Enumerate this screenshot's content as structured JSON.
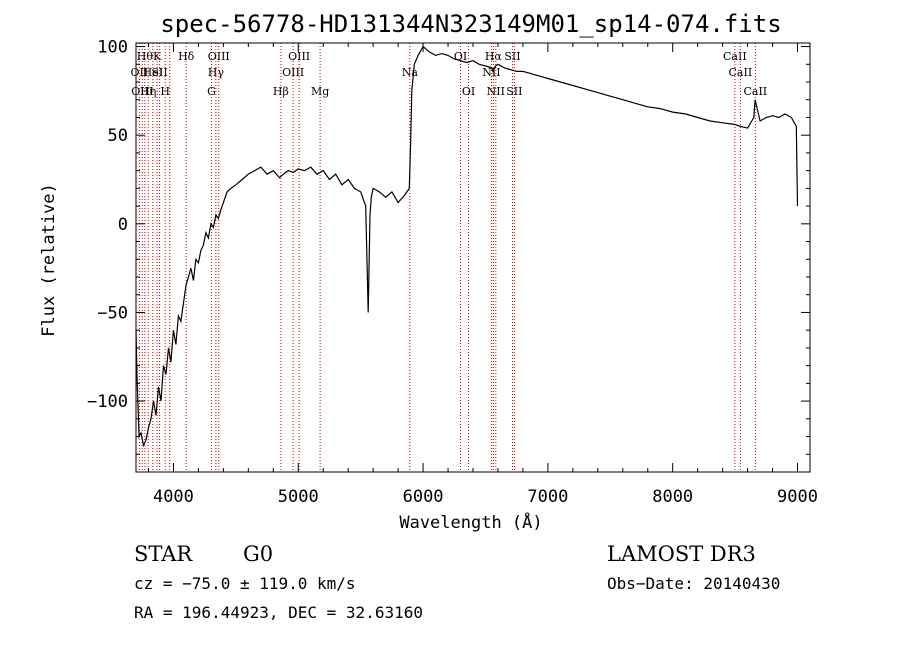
{
  "chart_data": {
    "type": "line",
    "title": "spec-56778-HD131344N323149M01_sp14-074.fits",
    "xlabel": "Wavelength (Å)",
    "ylabel": "Flux (relative)",
    "xlim": [
      3700,
      9100
    ],
    "ylim": [
      -140,
      102
    ],
    "xticks": [
      4000,
      5000,
      6000,
      7000,
      8000,
      9000
    ],
    "yticks": [
      -100,
      -50,
      0,
      50,
      100
    ],
    "grid": false,
    "line_color": "#000000",
    "marker_color": "#cc0000",
    "series": [
      {
        "x": [
          3700,
          3710,
          3725,
          3740,
          3760,
          3780,
          3800,
          3820,
          3840,
          3860,
          3880,
          3900,
          3920,
          3940,
          3960,
          3980,
          4000,
          4020,
          4040,
          4060,
          4080,
          4100,
          4120,
          4140,
          4160,
          4180,
          4200,
          4220,
          4240,
          4260,
          4280,
          4300,
          4320,
          4340,
          4360,
          4380,
          4400,
          4430,
          4460,
          4500,
          4550,
          4600,
          4650,
          4700,
          4750,
          4800,
          4850,
          4880,
          4920,
          4960,
          5000,
          5050,
          5100,
          5150,
          5200,
          5250,
          5300,
          5350,
          5400,
          5450,
          5500,
          5540,
          5560,
          5575,
          5585,
          5600,
          5650,
          5700,
          5750,
          5800,
          5850,
          5890,
          5900,
          5910,
          5930,
          5960,
          6000,
          6050,
          6100,
          6150,
          6200,
          6250,
          6300,
          6350,
          6400,
          6450,
          6500,
          6550,
          6560,
          6580,
          6600,
          6650,
          6700,
          6750,
          6800,
          6850,
          6900,
          6950,
          7000,
          7100,
          7200,
          7300,
          7400,
          7500,
          7600,
          7700,
          7800,
          7900,
          8000,
          8100,
          8200,
          8300,
          8400,
          8500,
          8540,
          8600,
          8650,
          8660,
          8700,
          8750,
          8800,
          8850,
          8900,
          8950,
          8990,
          9000
        ],
        "y": [
          -60,
          -90,
          -120,
          -118,
          -125,
          -122,
          -115,
          -110,
          -100,
          -108,
          -92,
          -100,
          -80,
          -85,
          -70,
          -78,
          -60,
          -68,
          -52,
          -55,
          -45,
          -35,
          -30,
          -25,
          -32,
          -20,
          -22,
          -15,
          -12,
          -5,
          -8,
          0,
          -2,
          5,
          3,
          8,
          12,
          18,
          20,
          22,
          25,
          28,
          30,
          32,
          28,
          30,
          26,
          28,
          30,
          29,
          31,
          30,
          32,
          28,
          30,
          25,
          28,
          22,
          25,
          20,
          18,
          10,
          -50,
          5,
          15,
          20,
          18,
          15,
          18,
          12,
          16,
          20,
          45,
          75,
          90,
          95,
          100,
          97,
          95,
          96,
          95,
          93,
          92,
          91,
          92,
          90,
          89,
          88,
          86,
          89,
          90,
          88,
          87,
          86,
          86,
          85,
          84,
          83,
          82,
          80,
          78,
          76,
          74,
          72,
          70,
          68,
          66,
          65,
          63,
          62,
          60,
          58,
          57,
          56,
          55,
          54,
          60,
          70,
          58,
          60,
          61,
          60,
          62,
          60,
          55,
          10
        ]
      }
    ],
    "line_markers": [
      {
        "wave": 3727,
        "label": "OII",
        "row": 2
      },
      {
        "wave": 3750,
        "label": "OIII",
        "row": 3
      },
      {
        "wave": 3771,
        "label": "Hθ",
        "row": 1
      },
      {
        "wave": 3798,
        "label": "Hη",
        "row": 3
      },
      {
        "wave": 3835,
        "label": "HeI",
        "row": 2
      },
      {
        "wave": 3869,
        "label": "K",
        "row": 1
      },
      {
        "wave": 3889,
        "label": "SII",
        "row": 2
      },
      {
        "wave": 3934,
        "label": "H",
        "row": 3
      },
      {
        "wave": 3970,
        "label": "",
        "row": 0
      },
      {
        "wave": 4102,
        "label": "Hδ",
        "row": 1
      },
      {
        "wave": 4305,
        "label": "G",
        "row": 3
      },
      {
        "wave": 4340,
        "label": "Hγ",
        "row": 2
      },
      {
        "wave": 4363,
        "label": "OIII",
        "row": 1
      },
      {
        "wave": 4861,
        "label": "Hβ",
        "row": 3
      },
      {
        "wave": 4959,
        "label": "OIII",
        "row": 2
      },
      {
        "wave": 5007,
        "label": "OIII",
        "row": 1
      },
      {
        "wave": 5175,
        "label": "Mg",
        "row": 3
      },
      {
        "wave": 5894,
        "label": "Na",
        "row": 2
      },
      {
        "wave": 6300,
        "label": "OI",
        "row": 1
      },
      {
        "wave": 6364,
        "label": "OI",
        "row": 3
      },
      {
        "wave": 6548,
        "label": "NII",
        "row": 2
      },
      {
        "wave": 6563,
        "label": "Hα",
        "row": 1
      },
      {
        "wave": 6583,
        "label": "NII",
        "row": 3
      },
      {
        "wave": 6716,
        "label": "SII",
        "row": 1
      },
      {
        "wave": 6731,
        "label": "SII",
        "row": 3
      },
      {
        "wave": 8498,
        "label": "CaII",
        "row": 1
      },
      {
        "wave": 8542,
        "label": "CaII",
        "row": 2
      },
      {
        "wave": 8662,
        "label": "CaII",
        "row": 3
      }
    ]
  },
  "info": {
    "object_class": "STAR",
    "subclass": "G0",
    "survey": "LAMOST DR3",
    "redshift": "cz = −75.0 ± 119.0 km/s",
    "obs_date": "Obs−Date: 20140430",
    "coords": "RA = 196.44923, DEC =  32.63160"
  }
}
